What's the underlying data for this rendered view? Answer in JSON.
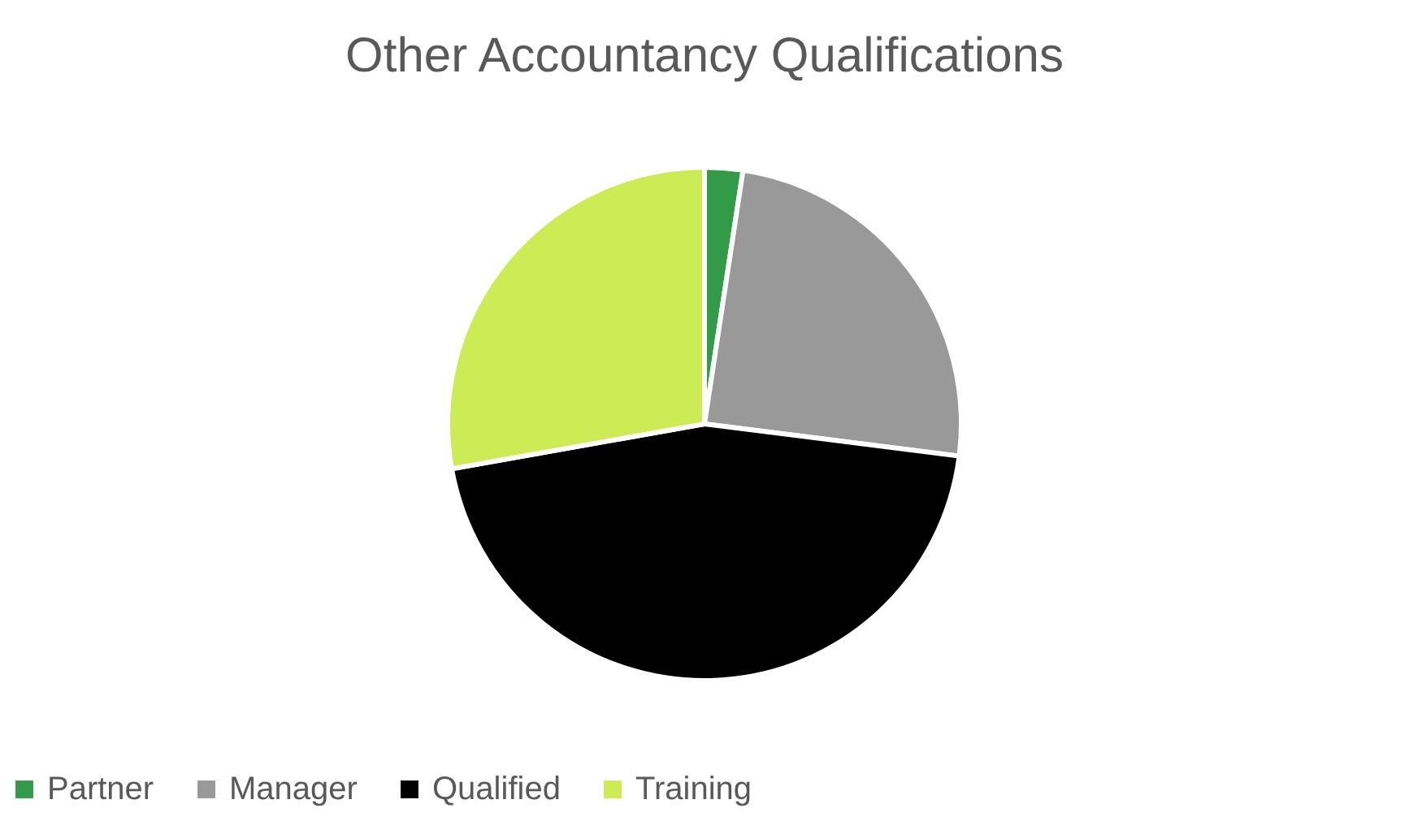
{
  "chart_data": {
    "type": "pie",
    "title": "Other Accountancy Qualifications",
    "categories": [
      "Partner",
      "Manager",
      "Qualified",
      "Training"
    ],
    "values": [
      2.4,
      24.6,
      45.2,
      27.8
    ],
    "colors": [
      "#339b48",
      "#999999",
      "#000000",
      "#cdeb55"
    ],
    "legend": "bottom"
  }
}
